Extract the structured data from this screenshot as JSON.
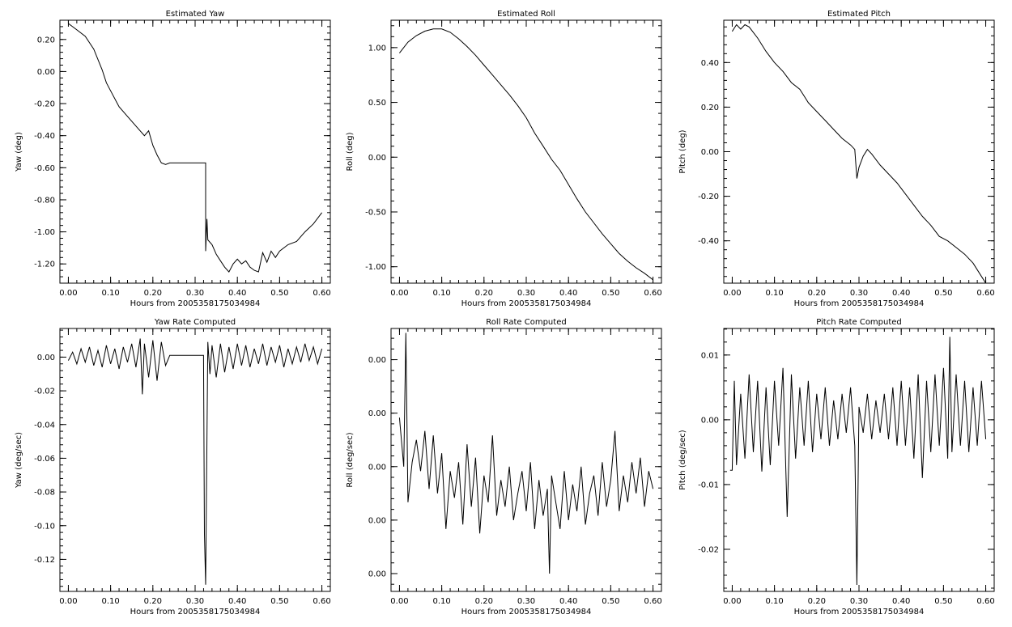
{
  "xlabel": "Hours from 2005358175034984",
  "chart_data": [
    {
      "type": "line",
      "title": "Estimated Yaw",
      "ylabel": "Yaw (deg)",
      "xlabel": "Hours from 2005358175034984",
      "xlim": [
        -0.02,
        0.62
      ],
      "ylim": [
        -1.32,
        0.32
      ],
      "xticks": [
        "0.00",
        "0.10",
        "0.20",
        "0.30",
        "0.40",
        "0.50",
        "0.60"
      ],
      "xtick_values": [
        0.0,
        0.1,
        0.2,
        0.3,
        0.4,
        0.5,
        0.6
      ],
      "yticks": [
        "0.20",
        "0.00",
        "-0.20",
        "-0.40",
        "-0.60",
        "-0.80",
        "-1.00",
        "-1.20"
      ],
      "ytick_values": [
        0.2,
        0.0,
        -0.2,
        -0.4,
        -0.6,
        -0.8,
        -1.0,
        -1.2
      ],
      "series": [
        {
          "x": [
            0.0,
            0.02,
            0.04,
            0.06,
            0.08,
            0.09,
            0.1,
            0.12,
            0.14,
            0.16,
            0.18,
            0.19,
            0.2,
            0.21,
            0.22,
            0.23,
            0.24,
            0.27,
            0.3,
            0.325,
            0.325,
            0.328,
            0.33,
            0.34,
            0.35,
            0.36,
            0.37,
            0.38,
            0.39,
            0.4,
            0.41,
            0.42,
            0.43,
            0.44,
            0.45,
            0.46,
            0.47,
            0.48,
            0.49,
            0.5,
            0.52,
            0.54,
            0.56,
            0.58,
            0.6
          ],
          "y": [
            0.3,
            0.26,
            0.22,
            0.14,
            0.01,
            -0.07,
            -0.12,
            -0.22,
            -0.28,
            -0.34,
            -0.4,
            -0.37,
            -0.46,
            -0.52,
            -0.57,
            -0.58,
            -0.57,
            -0.57,
            -0.57,
            -0.57,
            -1.12,
            -0.92,
            -1.05,
            -1.08,
            -1.14,
            -1.18,
            -1.22,
            -1.25,
            -1.2,
            -1.17,
            -1.2,
            -1.18,
            -1.22,
            -1.24,
            -1.25,
            -1.13,
            -1.19,
            -1.12,
            -1.16,
            -1.12,
            -1.08,
            -1.06,
            -1.0,
            -0.95,
            -0.88
          ]
        }
      ]
    },
    {
      "type": "line",
      "title": "Estimated Roll",
      "ylabel": "Roll (deg)",
      "xlabel": "Hours from 2005358175034984",
      "xlim": [
        -0.02,
        0.62
      ],
      "ylim": [
        -1.15,
        1.25
      ],
      "xticks": [
        "0.00",
        "0.10",
        "0.20",
        "0.30",
        "0.40",
        "0.50",
        "0.60"
      ],
      "xtick_values": [
        0.0,
        0.1,
        0.2,
        0.3,
        0.4,
        0.5,
        0.6
      ],
      "yticks": [
        "1.00",
        "0.50",
        "0.00",
        "-0.50",
        "-1.00"
      ],
      "ytick_values": [
        1.0,
        0.5,
        0.0,
        -0.5,
        -1.0
      ],
      "series": [
        {
          "x": [
            0.0,
            0.02,
            0.04,
            0.06,
            0.08,
            0.1,
            0.12,
            0.14,
            0.16,
            0.18,
            0.2,
            0.22,
            0.24,
            0.26,
            0.28,
            0.3,
            0.32,
            0.34,
            0.36,
            0.38,
            0.4,
            0.42,
            0.44,
            0.46,
            0.48,
            0.5,
            0.52,
            0.54,
            0.56,
            0.58,
            0.6
          ],
          "y": [
            0.95,
            1.05,
            1.11,
            1.15,
            1.17,
            1.17,
            1.14,
            1.08,
            1.01,
            0.93,
            0.84,
            0.75,
            0.66,
            0.57,
            0.47,
            0.36,
            0.22,
            0.1,
            -0.02,
            -0.12,
            -0.25,
            -0.38,
            -0.5,
            -0.6,
            -0.7,
            -0.79,
            -0.88,
            -0.95,
            -1.01,
            -1.06,
            -1.12
          ]
        }
      ]
    },
    {
      "type": "line",
      "title": "Estimated Pitch",
      "ylabel": "Pitch (deg)",
      "xlabel": "Hours from 2005358175034984",
      "xlim": [
        -0.02,
        0.62
      ],
      "ylim": [
        -0.59,
        0.59
      ],
      "xticks": [
        "0.00",
        "0.10",
        "0.20",
        "0.30",
        "0.40",
        "0.50",
        "0.60"
      ],
      "xtick_values": [
        0.0,
        0.1,
        0.2,
        0.3,
        0.4,
        0.5,
        0.6
      ],
      "yticks": [
        "0.40",
        "0.20",
        "0.00",
        "-0.20",
        "-0.40"
      ],
      "ytick_values": [
        0.4,
        0.2,
        0.0,
        -0.2,
        -0.4
      ],
      "series": [
        {
          "x": [
            0.0,
            0.01,
            0.02,
            0.03,
            0.04,
            0.06,
            0.08,
            0.1,
            0.12,
            0.14,
            0.16,
            0.17,
            0.18,
            0.2,
            0.22,
            0.24,
            0.26,
            0.28,
            0.29,
            0.295,
            0.3,
            0.31,
            0.32,
            0.33,
            0.35,
            0.37,
            0.39,
            0.41,
            0.43,
            0.45,
            0.47,
            0.49,
            0.51,
            0.53,
            0.55,
            0.57,
            0.59,
            0.6
          ],
          "y": [
            0.54,
            0.57,
            0.55,
            0.57,
            0.56,
            0.51,
            0.45,
            0.4,
            0.36,
            0.31,
            0.28,
            0.25,
            0.22,
            0.18,
            0.14,
            0.1,
            0.06,
            0.03,
            0.01,
            -0.12,
            -0.07,
            -0.02,
            0.01,
            -0.01,
            -0.06,
            -0.1,
            -0.14,
            -0.19,
            -0.24,
            -0.29,
            -0.33,
            -0.38,
            -0.4,
            -0.43,
            -0.46,
            -0.5,
            -0.56,
            -0.59
          ]
        }
      ]
    },
    {
      "type": "line",
      "title": "Yaw Rate Computed",
      "ylabel": "Yaw (deg/sec)",
      "xlabel": "Hours from 2005358175034984",
      "xlim": [
        -0.02,
        0.62
      ],
      "ylim": [
        -0.139,
        0.017
      ],
      "xticks": [
        "0.00",
        "0.10",
        "0.20",
        "0.30",
        "0.40",
        "0.50",
        "0.60"
      ],
      "xtick_values": [
        0.0,
        0.1,
        0.2,
        0.3,
        0.4,
        0.5,
        0.6
      ],
      "yticks": [
        "0.00",
        "-0.02",
        "-0.04",
        "-0.06",
        "-0.08",
        "-0.10",
        "-0.12"
      ],
      "ytick_values": [
        0.0,
        -0.02,
        -0.04,
        -0.06,
        -0.08,
        -0.1,
        -0.12
      ],
      "series": [
        {
          "x": [
            0.0,
            0.01,
            0.02,
            0.03,
            0.04,
            0.05,
            0.06,
            0.07,
            0.08,
            0.09,
            0.1,
            0.11,
            0.12,
            0.13,
            0.14,
            0.15,
            0.16,
            0.17,
            0.175,
            0.18,
            0.19,
            0.2,
            0.21,
            0.22,
            0.23,
            0.24,
            0.26,
            0.28,
            0.3,
            0.32,
            0.322,
            0.325,
            0.33,
            0.335,
            0.34,
            0.35,
            0.36,
            0.37,
            0.38,
            0.39,
            0.4,
            0.41,
            0.42,
            0.43,
            0.44,
            0.45,
            0.46,
            0.47,
            0.48,
            0.49,
            0.5,
            0.51,
            0.52,
            0.53,
            0.54,
            0.55,
            0.56,
            0.57,
            0.58,
            0.59,
            0.6
          ],
          "y": [
            -0.002,
            0.003,
            -0.004,
            0.005,
            -0.003,
            0.006,
            -0.005,
            0.004,
            -0.006,
            0.007,
            -0.004,
            0.005,
            -0.007,
            0.006,
            -0.003,
            0.008,
            -0.006,
            0.011,
            -0.022,
            0.008,
            -0.012,
            0.01,
            -0.014,
            0.009,
            -0.005,
            0.001,
            0.001,
            0.001,
            0.001,
            0.001,
            -0.105,
            -0.135,
            0.009,
            -0.01,
            0.007,
            -0.012,
            0.008,
            -0.009,
            0.006,
            -0.007,
            0.008,
            -0.005,
            0.007,
            -0.006,
            0.005,
            -0.004,
            0.008,
            -0.005,
            0.006,
            -0.003,
            0.007,
            -0.006,
            0.005,
            -0.004,
            0.006,
            -0.003,
            0.008,
            -0.002,
            0.006,
            -0.004,
            0.005
          ]
        }
      ]
    },
    {
      "type": "line",
      "title": "Roll Rate Computed",
      "ylabel": "Roll (deg/sec)",
      "xlabel": "Hours from 2005358175034984",
      "xlim": [
        -0.02,
        0.62
      ],
      "ylim": [
        -0.0147,
        -0.0088
      ],
      "xticks": [
        "0.00",
        "0.10",
        "0.20",
        "0.30",
        "0.40",
        "0.50",
        "0.60"
      ],
      "xtick_values": [
        0.0,
        0.1,
        0.2,
        0.3,
        0.4,
        0.5,
        0.6
      ],
      "yticks": [
        "0.00",
        "0.00",
        "0.00",
        "0.00",
        "0.00"
      ],
      "ytick_values": [
        -0.0095,
        -0.0107,
        -0.0119,
        -0.0131,
        -0.0143
      ],
      "series": [
        {
          "x": [
            0.0,
            0.01,
            0.015,
            0.02,
            0.03,
            0.04,
            0.05,
            0.06,
            0.07,
            0.08,
            0.09,
            0.1,
            0.11,
            0.12,
            0.13,
            0.14,
            0.15,
            0.16,
            0.17,
            0.18,
            0.19,
            0.2,
            0.21,
            0.22,
            0.23,
            0.24,
            0.25,
            0.26,
            0.27,
            0.28,
            0.29,
            0.3,
            0.31,
            0.32,
            0.33,
            0.34,
            0.35,
            0.355,
            0.36,
            0.37,
            0.38,
            0.39,
            0.4,
            0.41,
            0.42,
            0.43,
            0.44,
            0.45,
            0.46,
            0.47,
            0.48,
            0.49,
            0.5,
            0.51,
            0.52,
            0.53,
            0.54,
            0.55,
            0.56,
            0.57,
            0.58,
            0.59,
            0.6
          ],
          "y": [
            -0.0108,
            -0.0119,
            -0.0089,
            -0.0127,
            -0.0118,
            -0.0113,
            -0.012,
            -0.0111,
            -0.0124,
            -0.0112,
            -0.0125,
            -0.0116,
            -0.0133,
            -0.012,
            -0.0126,
            -0.0118,
            -0.0132,
            -0.0114,
            -0.0128,
            -0.0117,
            -0.0134,
            -0.0121,
            -0.0127,
            -0.0112,
            -0.013,
            -0.0122,
            -0.0128,
            -0.0119,
            -0.0131,
            -0.0125,
            -0.012,
            -0.0129,
            -0.0118,
            -0.0133,
            -0.0122,
            -0.013,
            -0.0124,
            -0.0143,
            -0.0121,
            -0.0127,
            -0.0133,
            -0.012,
            -0.0131,
            -0.0123,
            -0.0129,
            -0.0119,
            -0.0132,
            -0.0125,
            -0.0121,
            -0.013,
            -0.0118,
            -0.0128,
            -0.0122,
            -0.0111,
            -0.0129,
            -0.0121,
            -0.0127,
            -0.0118,
            -0.0125,
            -0.0117,
            -0.0128,
            -0.012,
            -0.0124
          ]
        }
      ]
    },
    {
      "type": "line",
      "title": "Pitch Rate Computed",
      "ylabel": "Pitch (deg/sec)",
      "xlabel": "Hours from 2005358175034984",
      "xlim": [
        -0.02,
        0.62
      ],
      "ylim": [
        -0.0265,
        0.0141
      ],
      "xticks": [
        "0.00",
        "0.10",
        "0.20",
        "0.30",
        "0.40",
        "0.50",
        "0.60"
      ],
      "xtick_values": [
        0.0,
        0.1,
        0.2,
        0.3,
        0.4,
        0.5,
        0.6
      ],
      "yticks": [
        "0.01",
        "0.00",
        "-0.01",
        "-0.02"
      ],
      "ytick_values": [
        0.01,
        0.0,
        -0.01,
        -0.02
      ],
      "series": [
        {
          "x": [
            -0.005,
            0.0,
            0.005,
            0.01,
            0.02,
            0.03,
            0.04,
            0.05,
            0.06,
            0.07,
            0.08,
            0.09,
            0.1,
            0.11,
            0.12,
            0.13,
            0.14,
            0.15,
            0.16,
            0.17,
            0.18,
            0.19,
            0.2,
            0.21,
            0.22,
            0.23,
            0.24,
            0.25,
            0.26,
            0.27,
            0.28,
            0.29,
            0.295,
            0.3,
            0.31,
            0.32,
            0.33,
            0.34,
            0.35,
            0.36,
            0.37,
            0.38,
            0.39,
            0.4,
            0.41,
            0.42,
            0.43,
            0.44,
            0.45,
            0.46,
            0.47,
            0.48,
            0.49,
            0.5,
            0.51,
            0.515,
            0.52,
            0.53,
            0.54,
            0.55,
            0.56,
            0.57,
            0.58,
            0.59,
            0.6
          ],
          "y": [
            -0.0078,
            -0.0078,
            0.006,
            -0.007,
            0.004,
            -0.006,
            0.007,
            -0.005,
            0.006,
            -0.008,
            0.005,
            -0.007,
            0.006,
            -0.004,
            0.008,
            -0.015,
            0.007,
            -0.006,
            0.005,
            -0.004,
            0.006,
            -0.005,
            0.004,
            -0.003,
            0.005,
            -0.004,
            0.003,
            -0.003,
            0.004,
            -0.002,
            0.005,
            -0.004,
            -0.0255,
            0.002,
            -0.002,
            0.004,
            -0.003,
            0.003,
            -0.002,
            0.004,
            -0.003,
            0.005,
            -0.004,
            0.006,
            -0.004,
            0.005,
            -0.006,
            0.007,
            -0.009,
            0.006,
            -0.005,
            0.007,
            -0.004,
            0.008,
            -0.006,
            0.0128,
            -0.005,
            0.007,
            -0.004,
            0.006,
            -0.005,
            0.005,
            -0.004,
            0.006,
            -0.003
          ]
        }
      ]
    }
  ]
}
